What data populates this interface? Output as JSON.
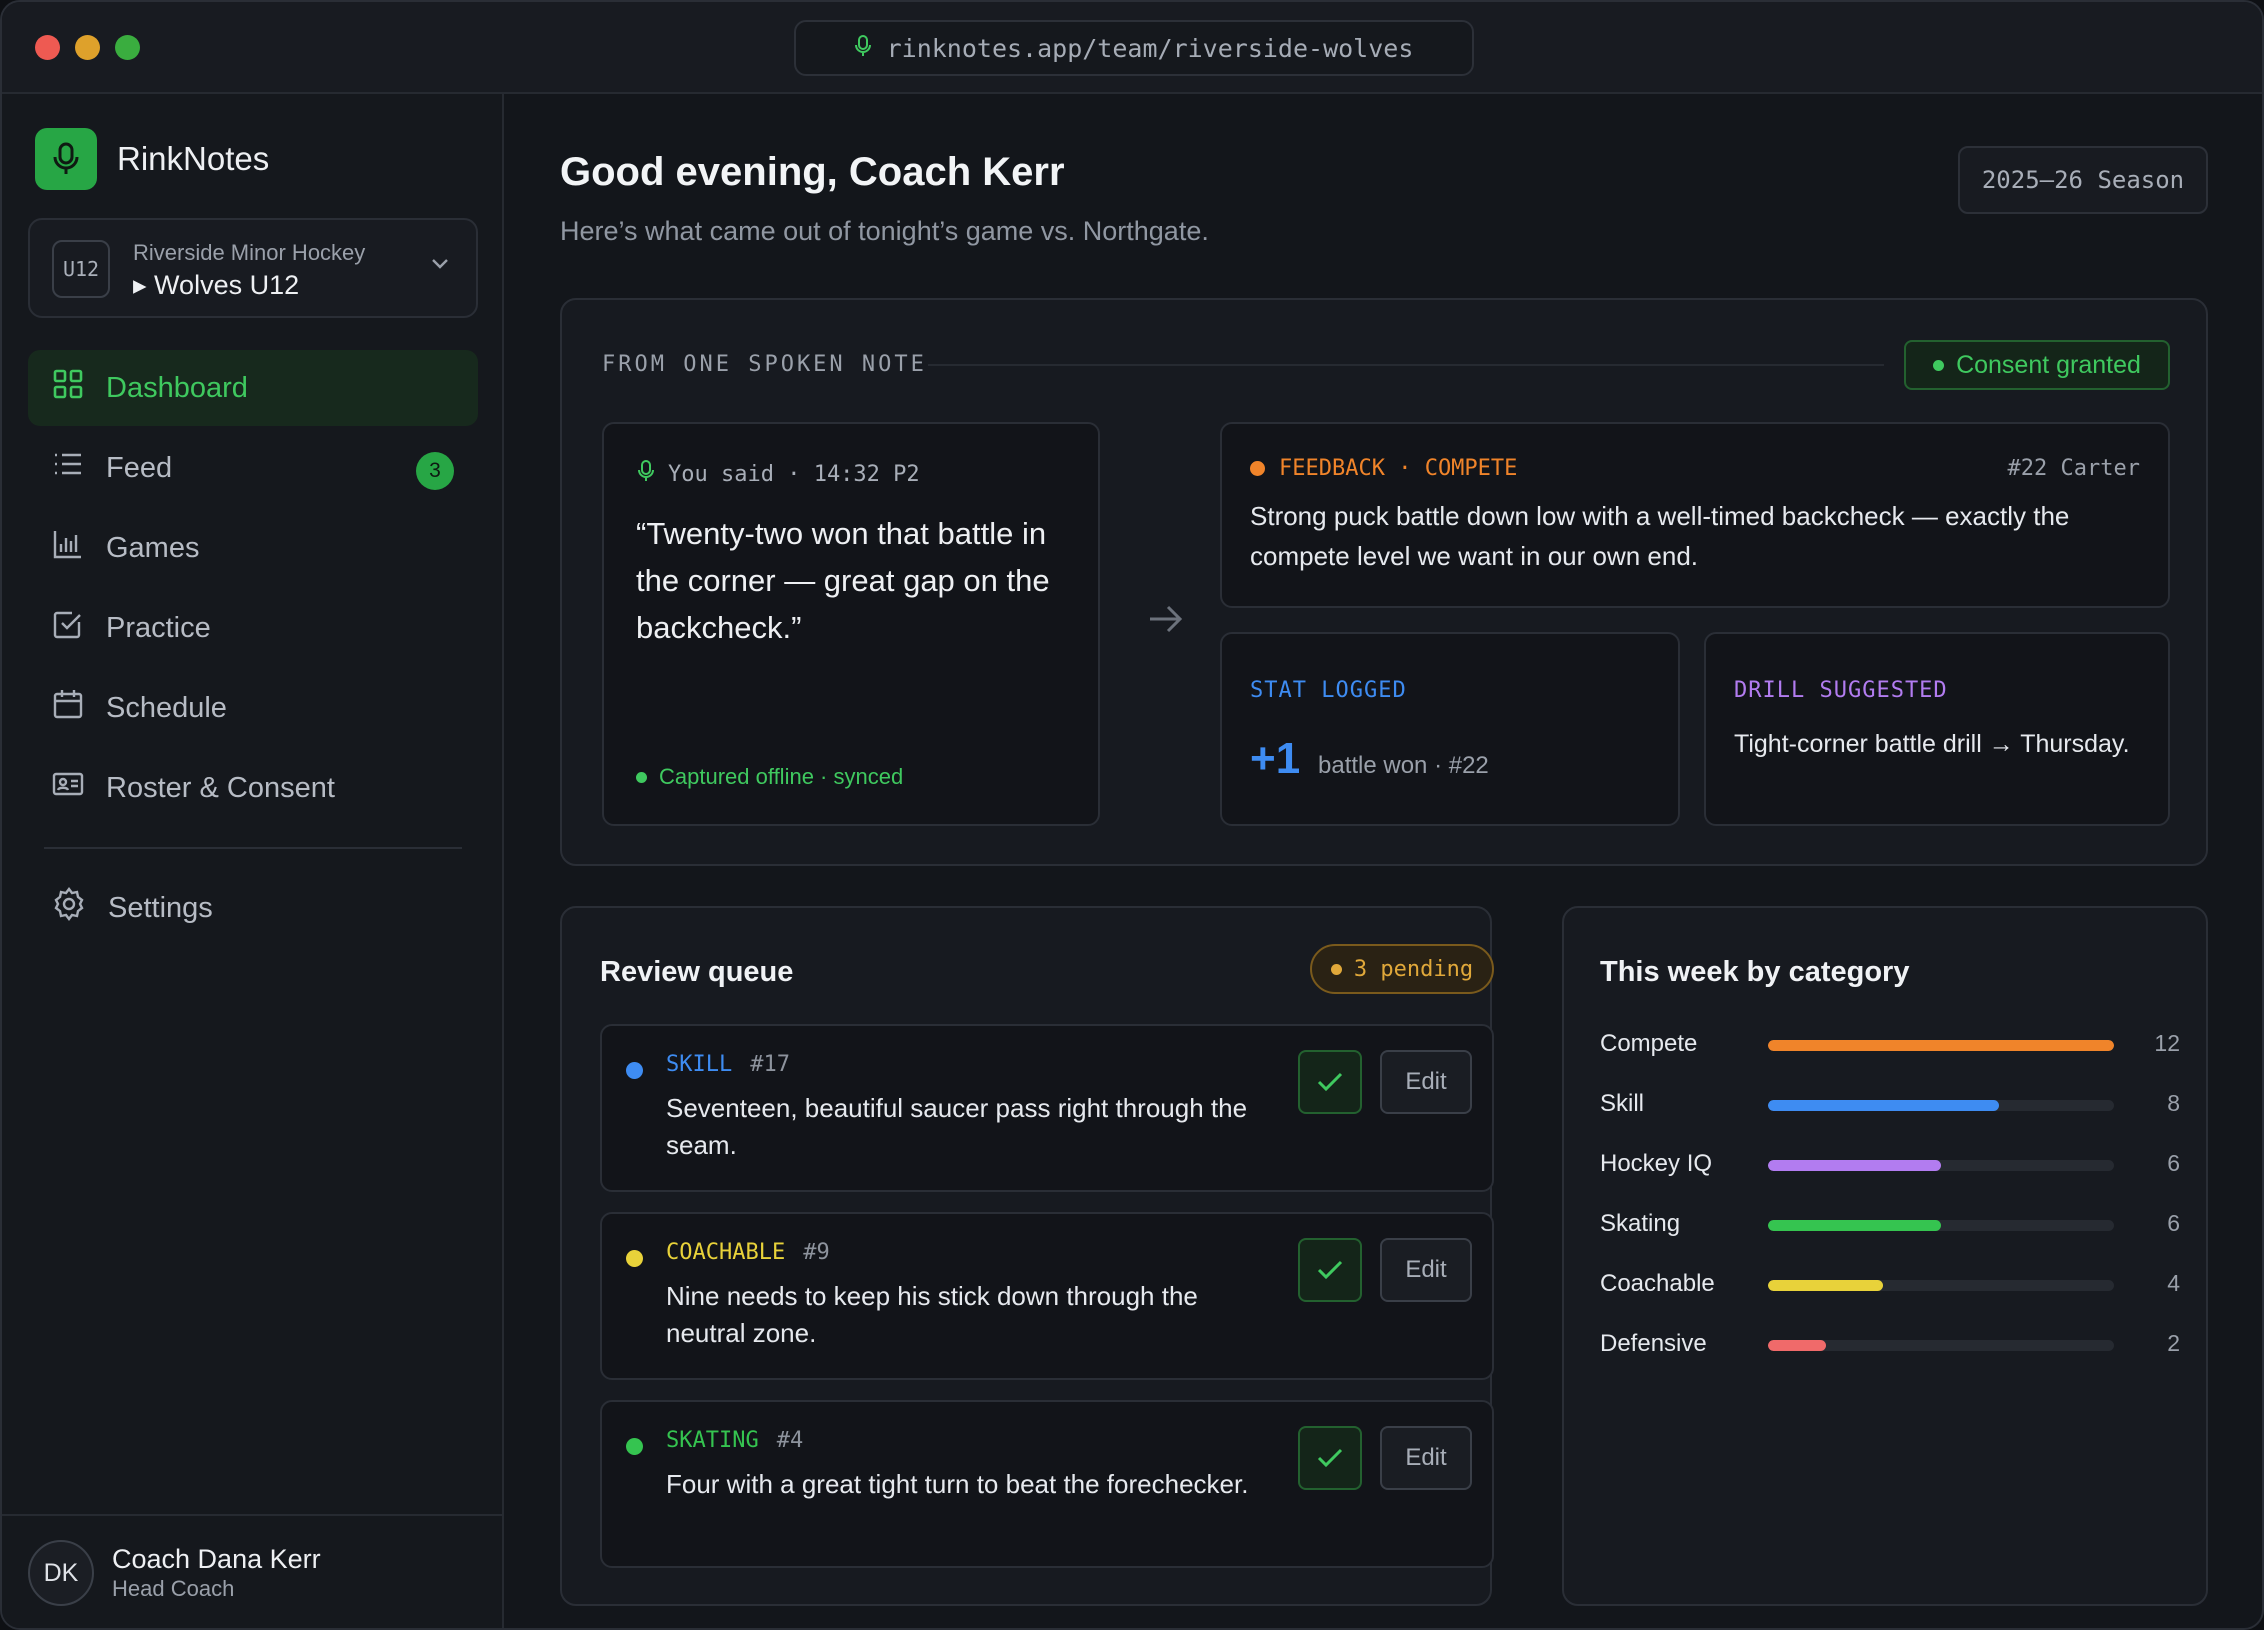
{
  "browser": {
    "url": "rinknotes.app/team/riverside-wolves"
  },
  "sidebar": {
    "brand": "RinkNotes",
    "team": {
      "badge": "U12",
      "org": "Riverside Minor Hockey",
      "name": "▸ Wolves U12"
    },
    "items": [
      {
        "label": "Dashboard",
        "icon": "grid-icon",
        "active": true
      },
      {
        "label": "Feed",
        "icon": "list-icon",
        "badge": "3"
      },
      {
        "label": "Games",
        "icon": "bar-chart-icon"
      },
      {
        "label": "Practice",
        "icon": "checkbox-icon"
      },
      {
        "label": "Schedule",
        "icon": "calendar-icon"
      },
      {
        "label": "Roster & Consent",
        "icon": "id-card-icon"
      }
    ],
    "settings": {
      "label": "Settings",
      "icon": "gear-icon"
    },
    "user": {
      "initials": "DK",
      "name": "Coach Dana Kerr",
      "role": "Head Coach"
    }
  },
  "header": {
    "greeting": "Good evening, Coach Kerr",
    "subtitle": "Here’s what came out of tonight’s game vs. Northgate.",
    "season": "2025–26 Season"
  },
  "hero": {
    "label": "FROM ONE SPOKEN NOTE",
    "consent": "Consent granted",
    "said": "You said · 14:32 P2",
    "quote": "“Twenty-two won that battle in the corner — great gap on the backcheck.”",
    "captured": "Captured offline · synced",
    "feedback": {
      "tag": "FEEDBACK · COMPETE",
      "player": "#22 Carter",
      "text": "Strong puck battle down low with a well-timed backcheck — exactly the compete level we want in our own end."
    },
    "stat": {
      "tag": "STAT LOGGED",
      "value": "+1",
      "desc": "battle won · #22"
    },
    "drill": {
      "tag": "DRILL SUGGESTED",
      "text": "Tight-corner battle drill → Thursday."
    }
  },
  "queue": {
    "title": "Review queue",
    "pending": "3 pending",
    "edit_label": "Edit",
    "items": [
      {
        "category": "SKILL",
        "number": "#17",
        "text": "Seventeen, beautiful saucer pass right through the seam.",
        "color": "#3e8cf2"
      },
      {
        "category": "COACHABLE",
        "number": "#9",
        "text": "Nine needs to keep his stick down through the neutral zone.",
        "color": "#e8d23a"
      },
      {
        "category": "SKATING",
        "number": "#4",
        "text": "Four with a great tight turn to beat the forechecker.",
        "color": "#35c450"
      }
    ]
  },
  "categories": {
    "title": "This week by category",
    "max": 12,
    "rows": [
      {
        "label": "Compete",
        "count": 12,
        "color": "#f0842a"
      },
      {
        "label": "Skill",
        "count": 8,
        "color": "#3e8cf2"
      },
      {
        "label": "Hockey IQ",
        "count": 6,
        "color": "#b27cf0"
      },
      {
        "label": "Skating",
        "count": 6,
        "color": "#35c450"
      },
      {
        "label": "Coachable",
        "count": 4,
        "color": "#e8d23a"
      },
      {
        "label": "Defensive",
        "count": 2,
        "color": "#f06a6a"
      }
    ]
  },
  "colors": {
    "accent": "#27a645",
    "accent_text": "#3fc95f",
    "feedback": "#f0842a",
    "stat": "#3e8cf2",
    "drill": "#b27cf0",
    "pending": "#e0a83a"
  }
}
